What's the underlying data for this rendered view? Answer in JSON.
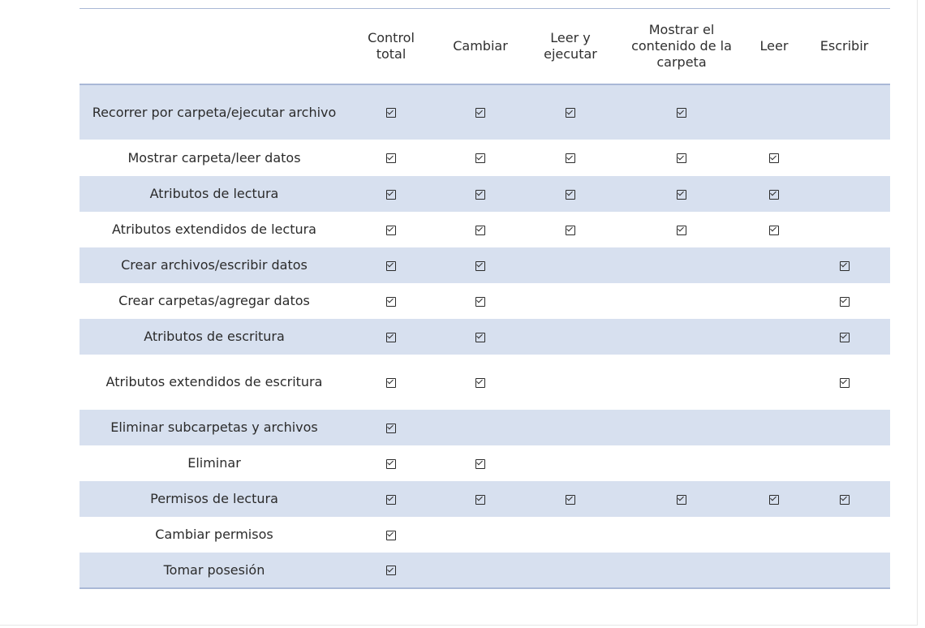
{
  "table": {
    "columns": [
      "Control total",
      "Cambiar",
      "Leer y ejecutar",
      "Mostrar el contenido de la carpeta",
      "Leer",
      "Escribir"
    ],
    "rows": [
      {
        "label": "Recorrer por carpeta/ejecutar archivo",
        "checks": [
          true,
          true,
          true,
          true,
          false,
          false
        ]
      },
      {
        "label": "Mostrar carpeta/leer datos",
        "checks": [
          true,
          true,
          true,
          true,
          true,
          false
        ]
      },
      {
        "label": "Atributos de lectura",
        "checks": [
          true,
          true,
          true,
          true,
          true,
          false
        ]
      },
      {
        "label": "Atributos extendidos de lectura",
        "checks": [
          true,
          true,
          true,
          true,
          true,
          false
        ]
      },
      {
        "label": "Crear archivos/escribir datos",
        "checks": [
          true,
          true,
          false,
          false,
          false,
          true
        ]
      },
      {
        "label": "Crear carpetas/agregar datos",
        "checks": [
          true,
          true,
          false,
          false,
          false,
          true
        ]
      },
      {
        "label": "Atributos de escritura",
        "checks": [
          true,
          true,
          false,
          false,
          false,
          true
        ]
      },
      {
        "label": "Atributos extendidos de escritura",
        "checks": [
          true,
          true,
          false,
          false,
          false,
          true
        ]
      },
      {
        "label": "Eliminar subcarpetas y archivos",
        "checks": [
          true,
          false,
          false,
          false,
          false,
          false
        ]
      },
      {
        "label": "Eliminar",
        "checks": [
          true,
          true,
          false,
          false,
          false,
          false
        ]
      },
      {
        "label": "Permisos de lectura",
        "checks": [
          true,
          true,
          true,
          true,
          true,
          true
        ]
      },
      {
        "label": "Cambiar permisos",
        "checks": [
          true,
          false,
          false,
          false,
          false,
          false
        ]
      },
      {
        "label": "Tomar posesión",
        "checks": [
          true,
          false,
          false,
          false,
          false,
          false
        ]
      }
    ],
    "check_icon": "checked-box-icon",
    "shade_color": "#d7e0ef",
    "rule_color": "#a9b8d6"
  }
}
